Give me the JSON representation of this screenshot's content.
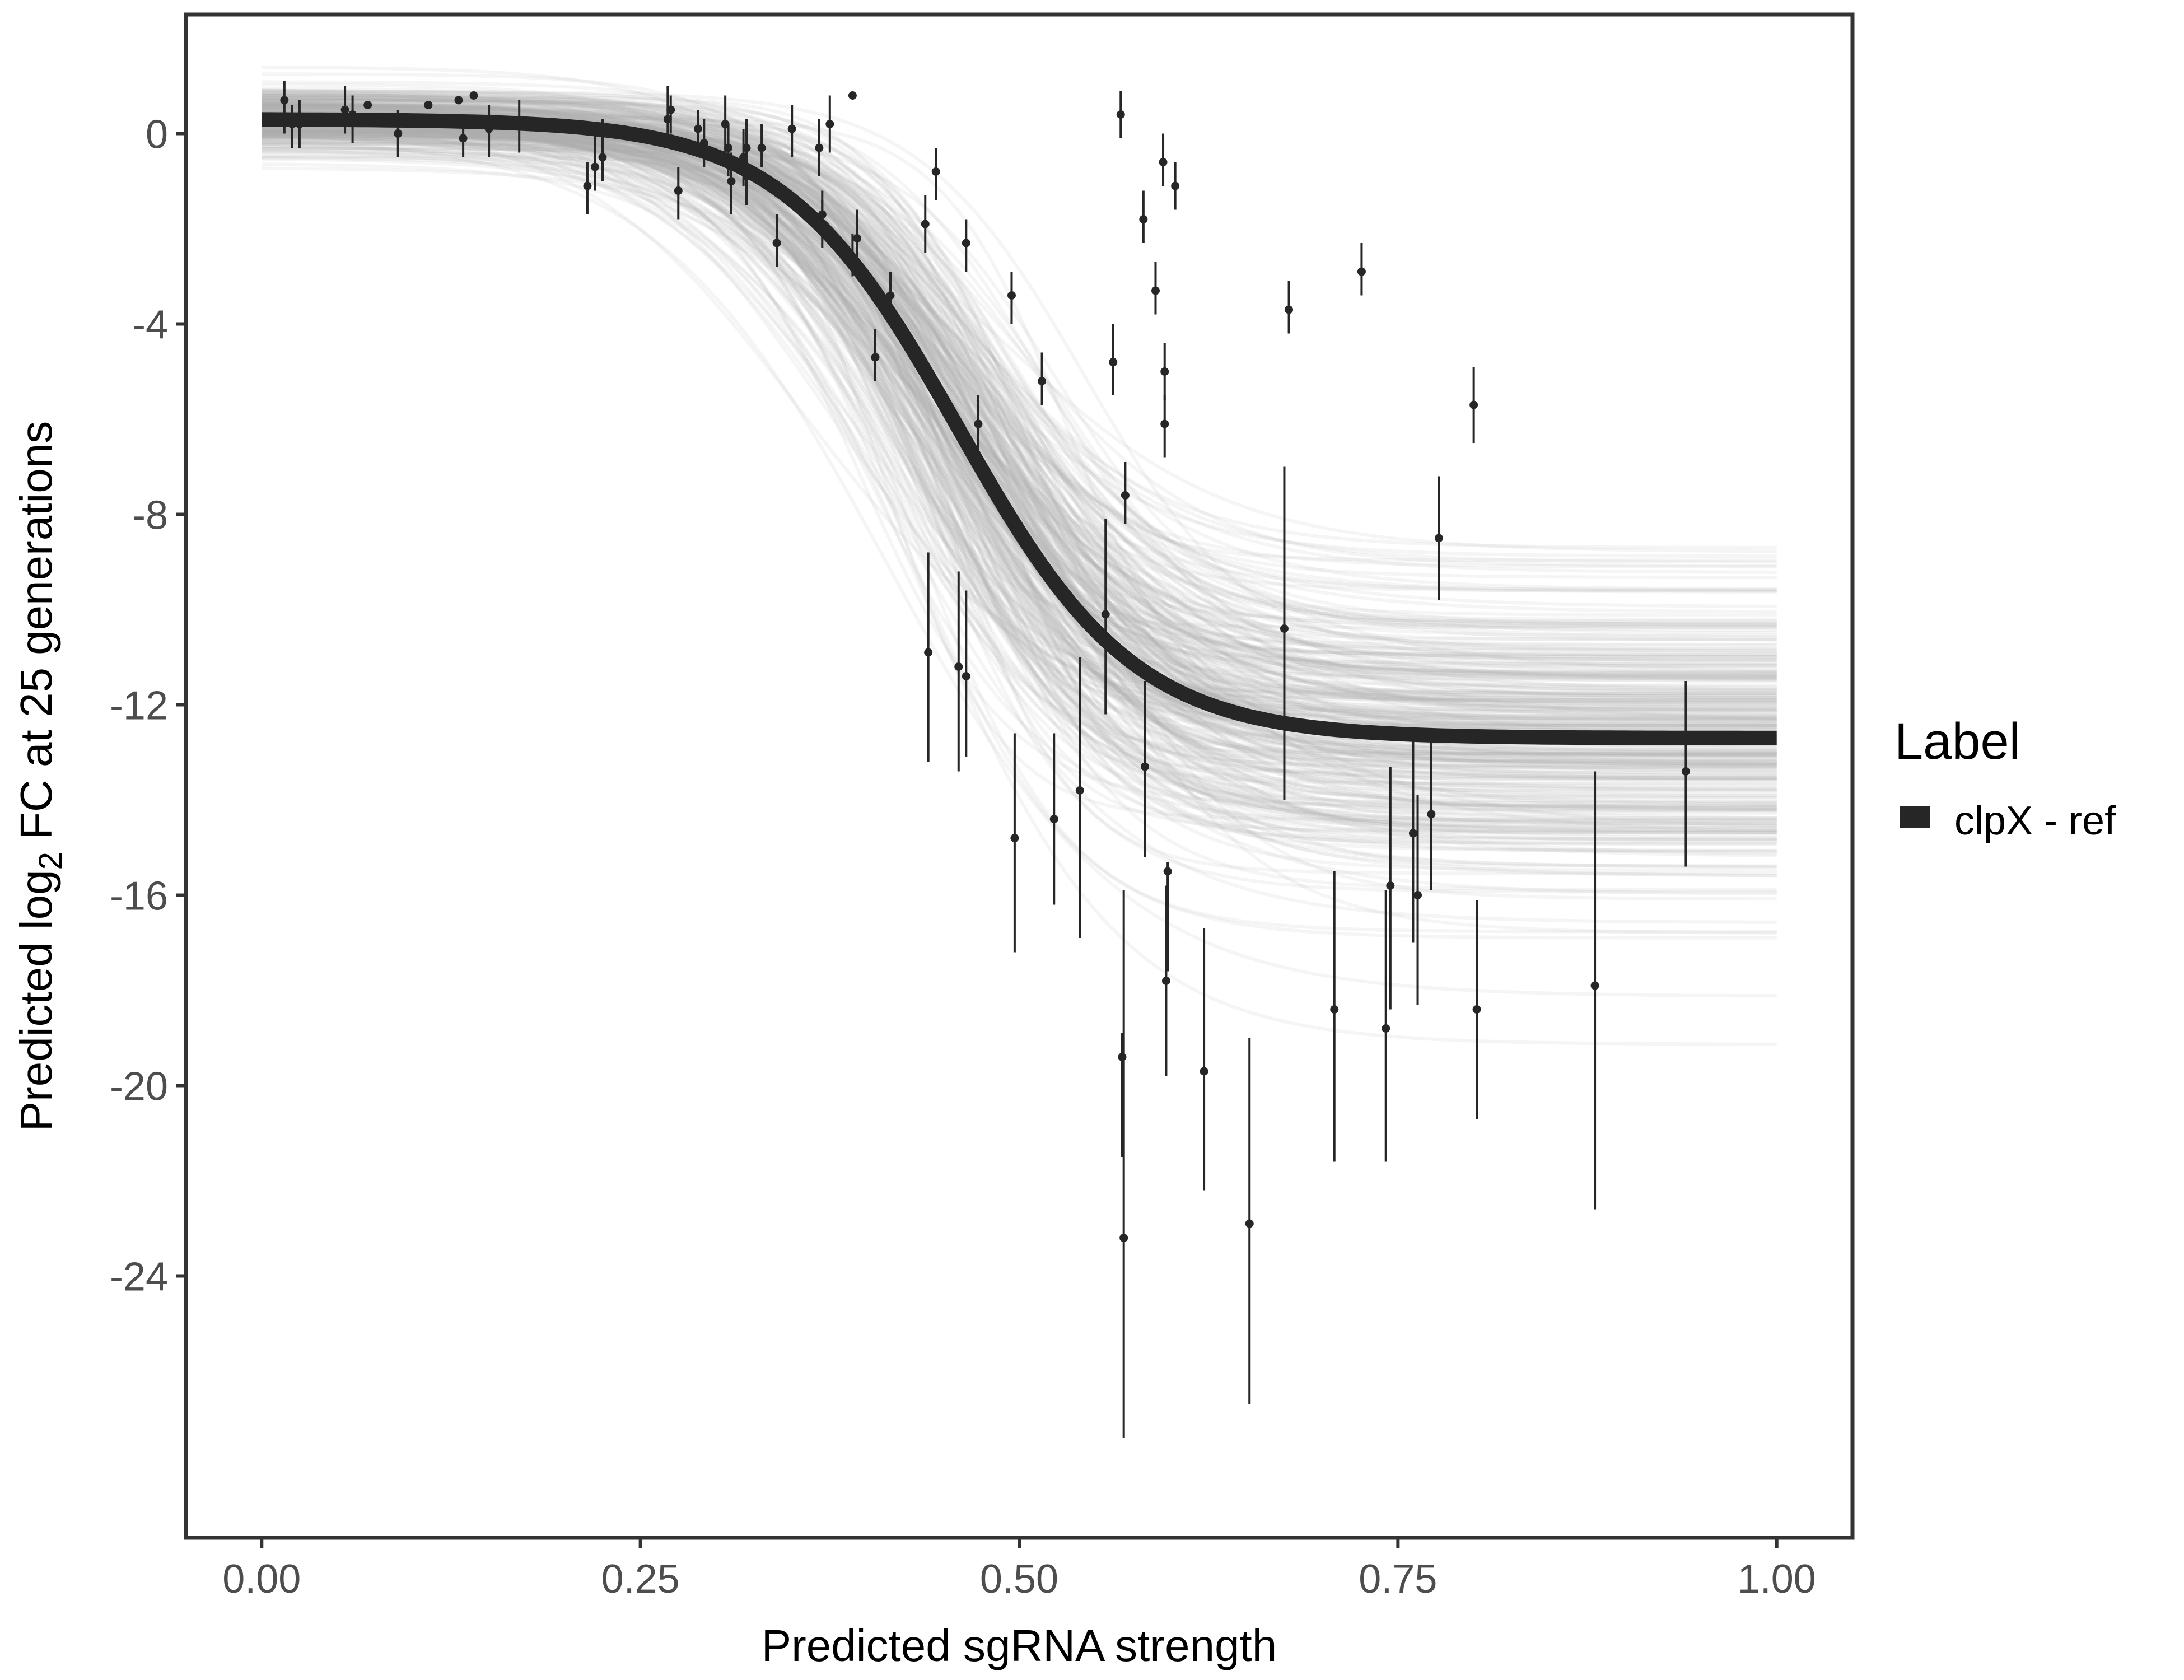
{
  "chart_data": {
    "type": "scatter",
    "title": "",
    "xlabel": "Predicted sgRNA strength",
    "ylabel": {
      "prefix": "Predicted  log",
      "subscript": "2",
      "suffix": " FC at 25 generations"
    },
    "xlim": [
      -0.05,
      1.05
    ],
    "ylim": [
      -29.5,
      2.5
    ],
    "x_ticks": [
      0.0,
      0.25,
      0.5,
      0.75,
      1.0
    ],
    "x_tick_labels": [
      "0.00",
      "0.25",
      "0.50",
      "0.75",
      "1.00"
    ],
    "y_ticks": [
      0,
      -4,
      -8,
      -12,
      -16,
      -20,
      -24
    ],
    "y_tick_labels": [
      "0",
      "-4",
      "-8",
      "-12",
      "-16",
      "-20",
      "-24"
    ],
    "grid": false,
    "legend": {
      "title": "Label",
      "position": "right",
      "entries": [
        {
          "label": "clpX - ref",
          "color": "#262626"
        }
      ]
    },
    "fit_curve": {
      "name": "clpX - ref",
      "model": "logistic",
      "upper": 0.3,
      "lower": -12.7,
      "midpoint": 0.46,
      "scale": 0.058,
      "color": "#262626"
    },
    "posterior_draws": {
      "color": "#aaaaaa",
      "count": 320
    },
    "points": [
      {
        "x": 0.015,
        "y": 0.7,
        "lo": 0.0,
        "hi": 1.1
      },
      {
        "x": 0.02,
        "y": 0.2,
        "lo": -0.3,
        "hi": 0.6
      },
      {
        "x": 0.025,
        "y": 0.2,
        "lo": -0.3,
        "hi": 0.7
      },
      {
        "x": 0.055,
        "y": 0.5,
        "lo": 0.0,
        "hi": 1.0
      },
      {
        "x": 0.06,
        "y": 0.4,
        "lo": -0.2,
        "hi": 0.8
      },
      {
        "x": 0.07,
        "y": 0.6,
        "lo": 0.6,
        "hi": 0.6
      },
      {
        "x": 0.09,
        "y": 0.0,
        "lo": -0.5,
        "hi": 0.5
      },
      {
        "x": 0.11,
        "y": 0.6,
        "lo": 0.6,
        "hi": 0.6
      },
      {
        "x": 0.13,
        "y": 0.7,
        "lo": 0.7,
        "hi": 0.7
      },
      {
        "x": 0.133,
        "y": -0.1,
        "lo": -0.5,
        "hi": 0.4
      },
      {
        "x": 0.14,
        "y": 0.8,
        "lo": 0.8,
        "hi": 0.8
      },
      {
        "x": 0.15,
        "y": 0.1,
        "lo": -0.5,
        "hi": 0.6
      },
      {
        "x": 0.17,
        "y": 0.2,
        "lo": -0.4,
        "hi": 0.7
      },
      {
        "x": 0.215,
        "y": -1.1,
        "lo": -1.7,
        "hi": -0.6
      },
      {
        "x": 0.22,
        "y": -0.7,
        "lo": -1.2,
        "hi": 0.0
      },
      {
        "x": 0.225,
        "y": -0.5,
        "lo": -1.0,
        "hi": 0.3
      },
      {
        "x": 0.268,
        "y": 0.3,
        "lo": -0.3,
        "hi": 1.0
      },
      {
        "x": 0.27,
        "y": 0.5,
        "lo": 0.0,
        "hi": 0.8
      },
      {
        "x": 0.275,
        "y": -1.2,
        "lo": -1.8,
        "hi": -0.7
      },
      {
        "x": 0.288,
        "y": 0.1,
        "lo": -0.4,
        "hi": 0.5
      },
      {
        "x": 0.292,
        "y": -0.2,
        "lo": -0.7,
        "hi": 0.3
      },
      {
        "x": 0.306,
        "y": 0.2,
        "lo": -0.4,
        "hi": 0.8
      },
      {
        "x": 0.308,
        "y": -0.3,
        "lo": -0.9,
        "hi": 0.2
      },
      {
        "x": 0.31,
        "y": -1.0,
        "lo": -1.7,
        "hi": -0.4
      },
      {
        "x": 0.318,
        "y": -0.5,
        "lo": -1.1,
        "hi": 0.1
      },
      {
        "x": 0.32,
        "y": -0.9,
        "lo": -1.5,
        "hi": -0.4
      },
      {
        "x": 0.32,
        "y": -0.3,
        "lo": -0.9,
        "hi": 0.3
      },
      {
        "x": 0.33,
        "y": -0.3,
        "lo": -0.7,
        "hi": 0.2
      },
      {
        "x": 0.34,
        "y": -2.3,
        "lo": -2.8,
        "hi": -1.7
      },
      {
        "x": 0.35,
        "y": 0.1,
        "lo": -0.5,
        "hi": 0.6
      },
      {
        "x": 0.368,
        "y": -0.3,
        "lo": -0.9,
        "hi": 0.3
      },
      {
        "x": 0.37,
        "y": -1.9,
        "lo": -2.4,
        "hi": -1.4
      },
      {
        "x": 0.37,
        "y": -1.7,
        "lo": -2.2,
        "hi": -1.2
      },
      {
        "x": 0.375,
        "y": 0.2,
        "lo": -0.4,
        "hi": 0.8
      },
      {
        "x": 0.39,
        "y": 0.8,
        "lo": 0.8,
        "hi": 0.8
      },
      {
        "x": 0.39,
        "y": -2.6,
        "lo": -3.0,
        "hi": -2.1
      },
      {
        "x": 0.393,
        "y": -2.2,
        "lo": -2.7,
        "hi": -1.6
      },
      {
        "x": 0.405,
        "y": -4.7,
        "lo": -5.2,
        "hi": -4.1
      },
      {
        "x": 0.415,
        "y": -3.4,
        "lo": -3.9,
        "hi": -2.9
      },
      {
        "x": 0.438,
        "y": -1.9,
        "lo": -2.5,
        "hi": -1.3
      },
      {
        "x": 0.445,
        "y": -0.8,
        "lo": -1.4,
        "hi": -0.3
      },
      {
        "x": 0.44,
        "y": -10.9,
        "lo": -13.2,
        "hi": -8.8
      },
      {
        "x": 0.46,
        "y": -11.2,
        "lo": -13.4,
        "hi": -9.2
      },
      {
        "x": 0.465,
        "y": -11.4,
        "lo": -13.1,
        "hi": -9.6
      },
      {
        "x": 0.465,
        "y": -2.3,
        "lo": -2.9,
        "hi": -1.8
      },
      {
        "x": 0.473,
        "y": -6.1,
        "lo": -6.8,
        "hi": -5.5
      },
      {
        "x": 0.495,
        "y": -3.4,
        "lo": -4.0,
        "hi": -2.9
      },
      {
        "x": 0.497,
        "y": -14.8,
        "lo": -17.2,
        "hi": -12.6
      },
      {
        "x": 0.515,
        "y": -5.2,
        "lo": -5.7,
        "hi": -4.6
      },
      {
        "x": 0.523,
        "y": -14.4,
        "lo": -16.2,
        "hi": -12.6
      },
      {
        "x": 0.54,
        "y": -13.8,
        "lo": -16.9,
        "hi": -11.0
      },
      {
        "x": 0.557,
        "y": -10.1,
        "lo": -12.2,
        "hi": -8.1
      },
      {
        "x": 0.562,
        "y": -4.8,
        "lo": -5.5,
        "hi": -4.0
      },
      {
        "x": 0.567,
        "y": 0.4,
        "lo": -0.1,
        "hi": 0.9
      },
      {
        "x": 0.568,
        "y": -19.4,
        "lo": -21.5,
        "hi": -18.9
      },
      {
        "x": 0.569,
        "y": -23.2,
        "lo": -27.4,
        "hi": -15.9
      },
      {
        "x": 0.57,
        "y": -7.6,
        "lo": -8.2,
        "hi": -6.9
      },
      {
        "x": 0.582,
        "y": -1.8,
        "lo": -2.3,
        "hi": -1.2
      },
      {
        "x": 0.583,
        "y": -13.3,
        "lo": -15.2,
        "hi": -11.5
      },
      {
        "x": 0.59,
        "y": -3.3,
        "lo": -3.8,
        "hi": -2.7
      },
      {
        "x": 0.595,
        "y": -0.6,
        "lo": -1.1,
        "hi": 0.0
      },
      {
        "x": 0.596,
        "y": -5.0,
        "lo": -5.6,
        "hi": -4.4
      },
      {
        "x": 0.596,
        "y": -6.1,
        "lo": -6.8,
        "hi": -5.5
      },
      {
        "x": 0.597,
        "y": -17.8,
        "lo": -19.8,
        "hi": -15.8
      },
      {
        "x": 0.598,
        "y": -15.5,
        "lo": -17.6,
        "hi": -15.3
      },
      {
        "x": 0.603,
        "y": -1.1,
        "lo": -1.6,
        "hi": -0.6
      },
      {
        "x": 0.622,
        "y": -19.7,
        "lo": -22.2,
        "hi": -16.7
      },
      {
        "x": 0.652,
        "y": -22.9,
        "lo": -26.7,
        "hi": -19.0
      },
      {
        "x": 0.675,
        "y": -10.4,
        "lo": -14.0,
        "hi": -7.0
      },
      {
        "x": 0.678,
        "y": -3.7,
        "lo": -4.2,
        "hi": -3.1
      },
      {
        "x": 0.708,
        "y": -18.4,
        "lo": -21.6,
        "hi": -15.5
      },
      {
        "x": 0.726,
        "y": -2.9,
        "lo": -3.4,
        "hi": -2.3
      },
      {
        "x": 0.742,
        "y": -18.8,
        "lo": -21.6,
        "hi": -15.9
      },
      {
        "x": 0.745,
        "y": -15.8,
        "lo": -18.4,
        "hi": -13.3
      },
      {
        "x": 0.76,
        "y": -14.7,
        "lo": -17.0,
        "hi": -12.6
      },
      {
        "x": 0.763,
        "y": -16.0,
        "lo": -18.3,
        "hi": -13.9
      },
      {
        "x": 0.772,
        "y": -14.3,
        "lo": -15.9,
        "hi": -12.6
      },
      {
        "x": 0.777,
        "y": -8.5,
        "lo": -9.8,
        "hi": -7.2
      },
      {
        "x": 0.8,
        "y": -5.7,
        "lo": -6.5,
        "hi": -4.9
      },
      {
        "x": 0.802,
        "y": -18.4,
        "lo": -20.7,
        "hi": -16.1
      },
      {
        "x": 0.88,
        "y": -17.9,
        "lo": -22.6,
        "hi": -13.4
      },
      {
        "x": 0.94,
        "y": -13.4,
        "lo": -15.4,
        "hi": -11.5
      }
    ]
  }
}
